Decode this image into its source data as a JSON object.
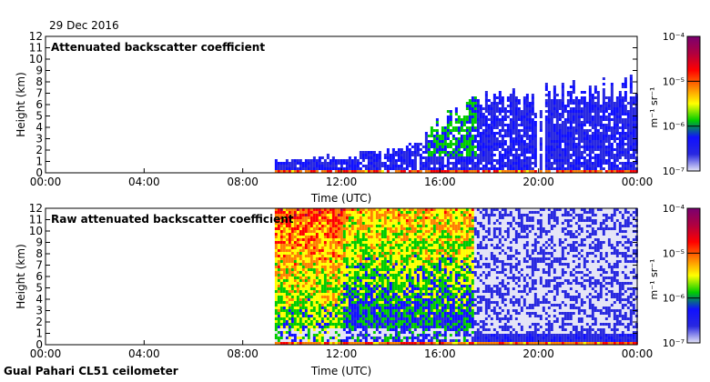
{
  "date": "29 Dec 2016",
  "footer": "Gual Pahari CL51 ceilometer",
  "colors": {
    "colormap": [
      "#e4e4f6",
      "#2828e0",
      "#1010ff",
      "#00cc00",
      "#ffff00",
      "#ff8000",
      "#ff0000",
      "#b00040",
      "#7a0070"
    ]
  },
  "chart_data": [
    {
      "type": "heatmap",
      "title": "Attenuated backscatter coefficient",
      "xlabel": "Time (UTC)",
      "ylabel": "Height (km)",
      "x_ticks": [
        "00:00",
        "04:00",
        "08:00",
        "12:00",
        "16:00",
        "20:00",
        "00:00"
      ],
      "xlim_hours": [
        0,
        24
      ],
      "y_ticks": [
        0,
        1,
        2,
        3,
        4,
        5,
        6,
        7,
        8,
        9,
        10,
        11,
        12
      ],
      "ylim": [
        0,
        12
      ],
      "colorbar": {
        "unit_label": "m⁻¹ sr⁻¹",
        "tick_labels": [
          "10⁻⁴",
          "10⁻⁵",
          "10⁻⁶",
          "10⁻⁷"
        ],
        "range_log10": [
          -7,
          -4
        ]
      },
      "data_start_hour": 9.3,
      "data_gaps_hours": [
        [
          19.9,
          20.0
        ],
        [
          20.1,
          20.25
        ]
      ],
      "signal_top_km": [
        {
          "hour": 9.3,
          "km": 1.2
        },
        {
          "hour": 12.0,
          "km": 1.6
        },
        {
          "hour": 14.5,
          "km": 2.2
        },
        {
          "hour": 15.0,
          "km": 2.8
        },
        {
          "hour": 16.0,
          "km": 4.5
        },
        {
          "hour": 17.3,
          "km": 6.5
        },
        {
          "hour": 20.0,
          "km": 7.0
        },
        {
          "hour": 24.0,
          "km": 8.0
        }
      ]
    },
    {
      "type": "heatmap",
      "title": "Raw attenuated backscatter coefficient",
      "xlabel": "Time (UTC)",
      "ylabel": "Height (km)",
      "x_ticks": [
        "00:00",
        "04:00",
        "08:00",
        "12:00",
        "16:00",
        "20:00",
        "00:00"
      ],
      "xlim_hours": [
        0,
        24
      ],
      "y_ticks": [
        0,
        1,
        2,
        3,
        4,
        5,
        6,
        7,
        8,
        9,
        10,
        11,
        12
      ],
      "ylim": [
        0,
        12
      ],
      "colorbar": {
        "unit_label": "m⁻¹ sr⁻¹",
        "tick_labels": [
          "10⁻⁴",
          "10⁻⁵",
          "10⁻⁶",
          "10⁻⁷"
        ],
        "range_log10": [
          -7,
          -4
        ]
      },
      "data_start_hour": 9.3,
      "noise_change_hour": 17.3
    }
  ]
}
